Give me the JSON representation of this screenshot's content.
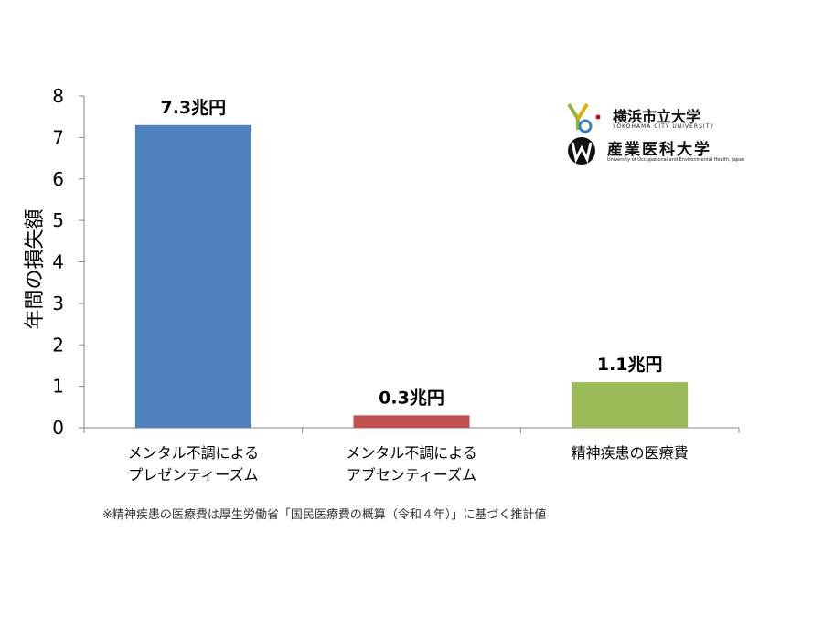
{
  "chart_data": {
    "type": "bar",
    "categories": [
      [
        "メンタル不調による",
        "プレゼンティーズム"
      ],
      [
        "メンタル不調による",
        "アブセンティーズム"
      ],
      [
        "精神疾患の医療費"
      ]
    ],
    "values": [
      7.3,
      0.3,
      1.1
    ],
    "data_labels": [
      "7.3兆円",
      "0.3兆円",
      "1.1兆円"
    ],
    "colors": [
      "#4f81bd",
      "#c0504d",
      "#9bbb59"
    ],
    "ylabel": "年間の損失額",
    "xlabel": "",
    "title": "",
    "ylim": [
      0,
      8
    ],
    "yticks": [
      "0",
      "1",
      "2",
      "3",
      "4",
      "5",
      "6",
      "7",
      "8"
    ],
    "grid": false,
    "legend": "none"
  },
  "footnote": "※精神疾患の医療費は厚生労働省「国民医療費の概算（令和４年）」に基づく推計値",
  "logos": {
    "yokohama": {
      "title": "横浜市立大学",
      "subtitle": "YOKOHAMA CITY UNIVERSITY",
      "icon": "ycu-logo-icon"
    },
    "uoeh": {
      "title": "産業医科大学",
      "subtitle": "University of Occupational and Environmental Health, Japan",
      "icon": "uoeh-logo-icon"
    }
  }
}
